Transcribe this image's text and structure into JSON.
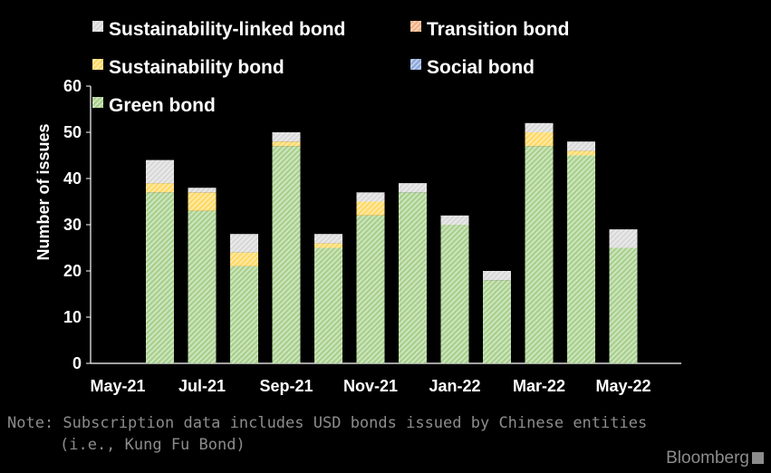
{
  "chart_data": {
    "type": "bar",
    "stacked": true,
    "title": "",
    "xlabel": "",
    "ylabel": "Number of issues",
    "ylim": [
      0,
      60
    ],
    "yticks": [
      0,
      10,
      20,
      30,
      40,
      50,
      60
    ],
    "grid": false,
    "legend_position": "top-left",
    "categories": [
      "May-21",
      "Jun-21",
      "Jul-21",
      "Aug-21",
      "Sep-21",
      "Oct-21",
      "Nov-21",
      "Dec-21",
      "Jan-22",
      "Feb-22",
      "Mar-22",
      "Apr-22",
      "May-22"
    ],
    "x_tick_labels": [
      "May-21",
      "Jul-21",
      "Sep-21",
      "Nov-21",
      "Jan-22",
      "Mar-22",
      "May-22"
    ],
    "series": [
      {
        "name": "Green bond",
        "color": "#a9d18e",
        "values": [
          0,
          37,
          33,
          21,
          47,
          25,
          32,
          37,
          30,
          18,
          47,
          45,
          25
        ]
      },
      {
        "name": "Social bond",
        "color": "#8fa9db",
        "values": [
          0,
          0,
          0,
          0,
          0,
          0,
          0,
          0,
          0,
          0,
          0,
          0,
          0
        ]
      },
      {
        "name": "Sustainability bond",
        "color": "#ffd966",
        "values": [
          0,
          2,
          4,
          3,
          1,
          1,
          3,
          0,
          0,
          0,
          3,
          1,
          0
        ]
      },
      {
        "name": "Transition bond",
        "color": "#f4b183",
        "values": [
          0,
          0,
          0,
          0,
          0,
          0,
          0,
          0,
          0,
          0,
          0,
          0,
          0
        ]
      },
      {
        "name": "Sustainability-linked bond",
        "color": "#d9d9d9",
        "values": [
          0,
          5,
          1,
          4,
          2,
          2,
          2,
          2,
          2,
          2,
          2,
          2,
          4
        ]
      }
    ],
    "legend_order": [
      "Sustainability-linked bond",
      "Transition bond",
      "Sustainability bond",
      "Social bond",
      "Green bond"
    ]
  },
  "note_line1": "Note: Subscription data includes USD bonds issued by Chinese entities",
  "note_line2": "(i.e., Kung Fu Bond)",
  "brand": "Bloomberg"
}
